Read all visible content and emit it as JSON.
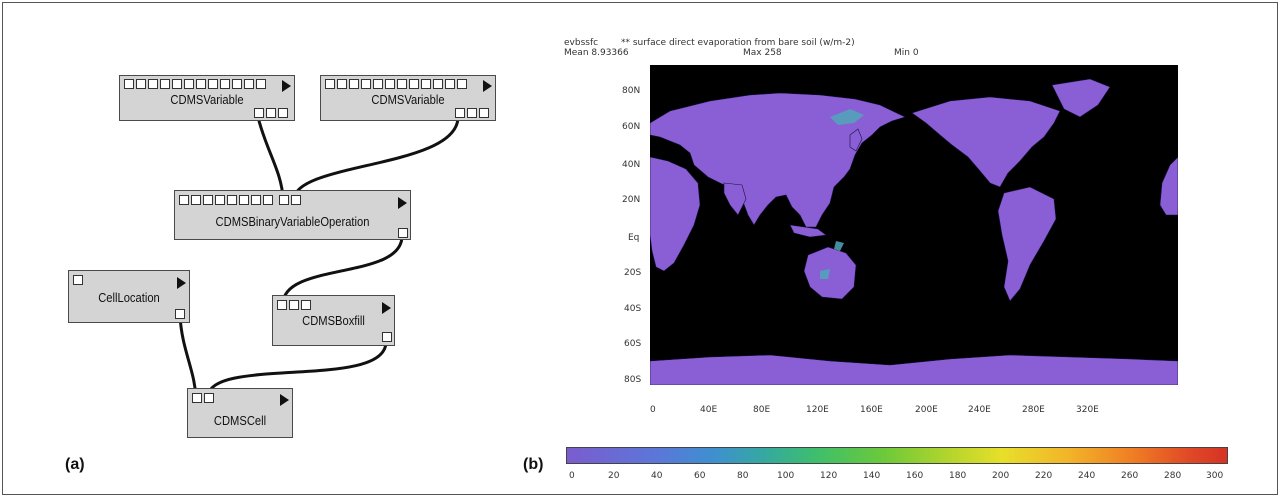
{
  "workflow": {
    "panel_label": "(a)",
    "modules": {
      "var1": {
        "label": "CDMSVariable"
      },
      "var2": {
        "label": "CDMSVariable"
      },
      "binop": {
        "label": "CDMSBinaryVariableOperation"
      },
      "cellloc": {
        "label": "CellLocation"
      },
      "boxfill": {
        "label": "CDMSBoxfill"
      },
      "cell": {
        "label": "CDMSCell"
      }
    }
  },
  "map": {
    "panel_label": "(b)",
    "header_line1": "evbssfc        ** surface direct evaporation from bare soil (w/m-2)",
    "header_mean": "Mean 8.93366",
    "header_max": "Max 258",
    "header_min": "Min 0",
    "lat_ticks": [
      "80N",
      "60N",
      "40N",
      "20N",
      "Eq",
      "20S",
      "40S",
      "60S",
      "80S"
    ],
    "lon_ticks": [
      "0",
      "40E",
      "80E",
      "120E",
      "160E",
      "200E",
      "240E",
      "280E",
      "320E"
    ],
    "colorbar_ticks": [
      "0",
      "20",
      "40",
      "60",
      "80",
      "100",
      "120",
      "140",
      "160",
      "180",
      "200",
      "220",
      "240",
      "260",
      "280",
      "300"
    ],
    "colors": {
      "ocean": "#000000",
      "land": "#8a5fd6",
      "land_high": "#4fa6b8"
    }
  }
}
